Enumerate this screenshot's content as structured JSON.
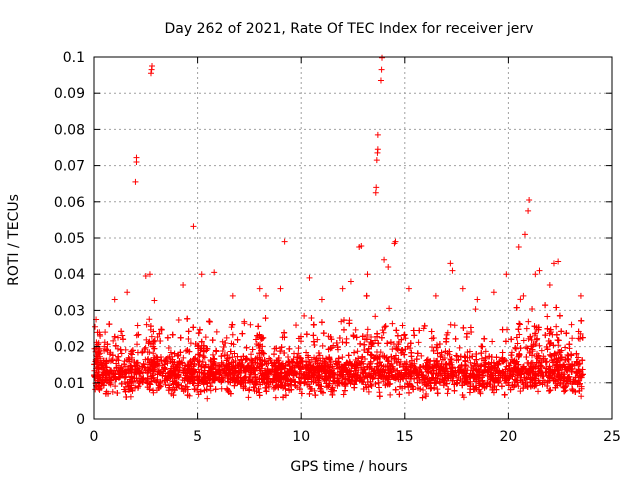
{
  "chart_data": {
    "type": "scatter",
    "title": "Day 262 of 2021, Rate Of TEC Index for receiver jerv",
    "xlabel": "GPS time / hours",
    "ylabel": "ROTI / TECUs",
    "xlim": [
      0,
      25
    ],
    "ylim": [
      0,
      0.1
    ],
    "xticks": [
      0,
      5,
      10,
      15,
      20,
      25
    ],
    "yticks": [
      0,
      0.01,
      0.02,
      0.03,
      0.04,
      0.05,
      0.06,
      0.07,
      0.08,
      0.09,
      0.1
    ],
    "grid": true,
    "marker": "+",
    "series": [
      {
        "name": "ROTI",
        "color": "#ff0000",
        "note": "dense band of points 0.003–0.03 from 0 to 23.6 h; notable outliers listed",
        "outliers": [
          [
            2.0,
            0.0655
          ],
          [
            2.05,
            0.071
          ],
          [
            2.05,
            0.0722
          ],
          [
            2.75,
            0.0955
          ],
          [
            2.78,
            0.0965
          ],
          [
            2.8,
            0.0975
          ],
          [
            4.8,
            0.0532
          ],
          [
            9.2,
            0.049
          ],
          [
            12.8,
            0.0475
          ],
          [
            12.9,
            0.0478
          ],
          [
            13.6,
            0.0625
          ],
          [
            13.62,
            0.064
          ],
          [
            13.65,
            0.0715
          ],
          [
            13.68,
            0.0735
          ],
          [
            13.7,
            0.0745
          ],
          [
            13.7,
            0.0785
          ],
          [
            13.85,
            0.0935
          ],
          [
            13.88,
            0.0965
          ],
          [
            13.9,
            0.0998
          ],
          [
            14.5,
            0.0485
          ],
          [
            14.55,
            0.049
          ],
          [
            20.95,
            0.0575
          ],
          [
            21.0,
            0.0605
          ],
          [
            20.8,
            0.051
          ],
          [
            20.5,
            0.0475
          ],
          [
            22.2,
            0.043
          ],
          [
            22.4,
            0.0435
          ],
          [
            0.05,
            0.0255
          ],
          [
            0.1,
            0.0275
          ],
          [
            1.0,
            0.033
          ],
          [
            1.6,
            0.035
          ],
          [
            2.5,
            0.0395
          ],
          [
            2.7,
            0.04
          ],
          [
            4.3,
            0.037
          ],
          [
            5.2,
            0.04
          ],
          [
            5.8,
            0.0405
          ],
          [
            6.7,
            0.034
          ],
          [
            8.0,
            0.036
          ],
          [
            8.3,
            0.034
          ],
          [
            9.0,
            0.036
          ],
          [
            10.4,
            0.039
          ],
          [
            11.0,
            0.033
          ],
          [
            12.0,
            0.036
          ],
          [
            12.4,
            0.038
          ],
          [
            13.2,
            0.04
          ],
          [
            14.0,
            0.044
          ],
          [
            14.2,
            0.042
          ],
          [
            15.2,
            0.036
          ],
          [
            16.5,
            0.034
          ],
          [
            17.2,
            0.043
          ],
          [
            17.3,
            0.041
          ],
          [
            17.8,
            0.036
          ],
          [
            18.5,
            0.033
          ],
          [
            19.3,
            0.035
          ],
          [
            19.9,
            0.04
          ],
          [
            21.3,
            0.04
          ],
          [
            21.5,
            0.041
          ],
          [
            22.0,
            0.037
          ],
          [
            23.5,
            0.034
          ]
        ]
      }
    ]
  }
}
